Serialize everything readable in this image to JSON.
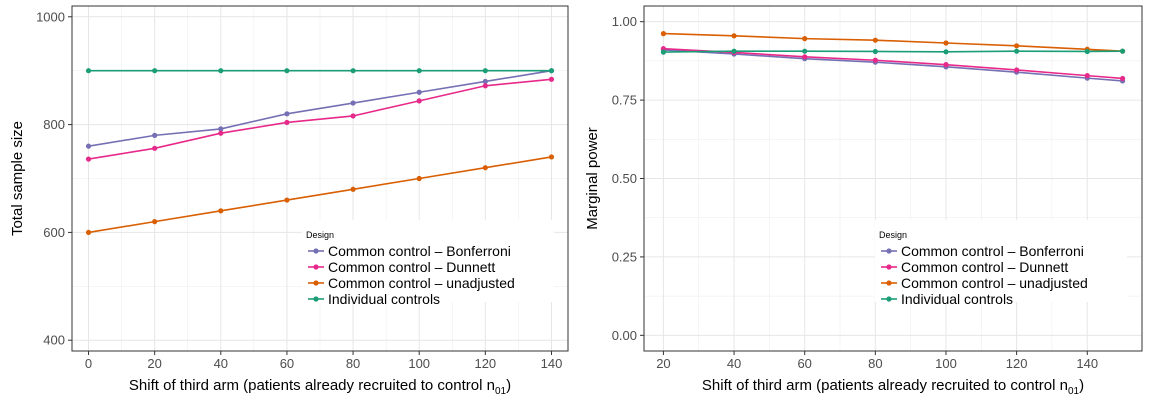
{
  "chart_data": [
    {
      "type": "line",
      "xlabel": "Shift of third arm (patients already recruited to control n",
      "xlabel_sub": "01",
      "xlabel_tail": ")",
      "ylabel": "Total sample size",
      "x": [
        0,
        20,
        40,
        60,
        80,
        100,
        120,
        140
      ],
      "xticks": [
        "0",
        "20",
        "40",
        "60",
        "80",
        "100",
        "120",
        "140"
      ],
      "xlim": [
        -5,
        145
      ],
      "yticks": [
        "400",
        "600",
        "800",
        "1000"
      ],
      "ytick_values": [
        400,
        600,
        800,
        1000
      ],
      "ylim": [
        380,
        1020
      ],
      "grid": true,
      "legend": {
        "title": "Design",
        "placement": "bottom-right",
        "entries": [
          "Common control – Bonferroni",
          "Common control – Dunnett",
          "Common control – unadjusted",
          "Individual controls"
        ]
      },
      "series": [
        {
          "name": "Common control – Bonferroni",
          "color": "#7570b3",
          "values": [
            760,
            780,
            792,
            820,
            840,
            860,
            880,
            900
          ]
        },
        {
          "name": "Common control – Dunnett",
          "color": "#e7298a",
          "values": [
            736,
            756,
            784,
            804,
            816,
            844,
            872,
            884
          ]
        },
        {
          "name": "Common control – unadjusted",
          "color": "#d95f02",
          "values": [
            600,
            620,
            640,
            660,
            680,
            700,
            720,
            740
          ]
        },
        {
          "name": "Individual controls",
          "color": "#1b9e77",
          "values": [
            900,
            900,
            900,
            900,
            900,
            900,
            900,
            900
          ]
        }
      ]
    },
    {
      "type": "line",
      "xlabel": "Shift of third arm (patients already recruited to control n",
      "xlabel_sub": "01",
      "xlabel_tail": ")",
      "ylabel": "Marginal power",
      "x": [
        20,
        40,
        60,
        80,
        100,
        120,
        140,
        150
      ],
      "xticks": [
        "20",
        "40",
        "60",
        "80",
        "100",
        "120",
        "140"
      ],
      "xtick_values": [
        20,
        40,
        60,
        80,
        100,
        120,
        140
      ],
      "xlim": [
        14.5,
        155.5
      ],
      "yticks": [
        "0.00",
        "0.25",
        "0.50",
        "0.75",
        "1.00"
      ],
      "ytick_values": [
        0,
        0.25,
        0.5,
        0.75,
        1.0
      ],
      "ylim": [
        -0.05,
        1.05
      ],
      "grid": true,
      "legend": {
        "title": "Design",
        "placement": "bottom-right",
        "entries": [
          "Common control – Bonferroni",
          "Common control – Dunnett",
          "Common control – unadjusted",
          "Individual controls"
        ]
      },
      "series": [
        {
          "name": "Common control – Bonferroni",
          "color": "#7570b3",
          "values": [
            0.91,
            0.897,
            0.882,
            0.871,
            0.856,
            0.839,
            0.82,
            0.811
          ]
        },
        {
          "name": "Common control – Dunnett",
          "color": "#e7298a",
          "values": [
            0.914,
            0.902,
            0.888,
            0.877,
            0.863,
            0.846,
            0.828,
            0.819
          ]
        },
        {
          "name": "Common control – unadjusted",
          "color": "#d95f02",
          "values": [
            0.962,
            0.955,
            0.946,
            0.941,
            0.932,
            0.923,
            0.912,
            0.906
          ]
        },
        {
          "name": "Individual controls",
          "color": "#1b9e77",
          "values": [
            0.903,
            0.906,
            0.906,
            0.905,
            0.904,
            0.906,
            0.905,
            0.906
          ]
        }
      ]
    }
  ]
}
